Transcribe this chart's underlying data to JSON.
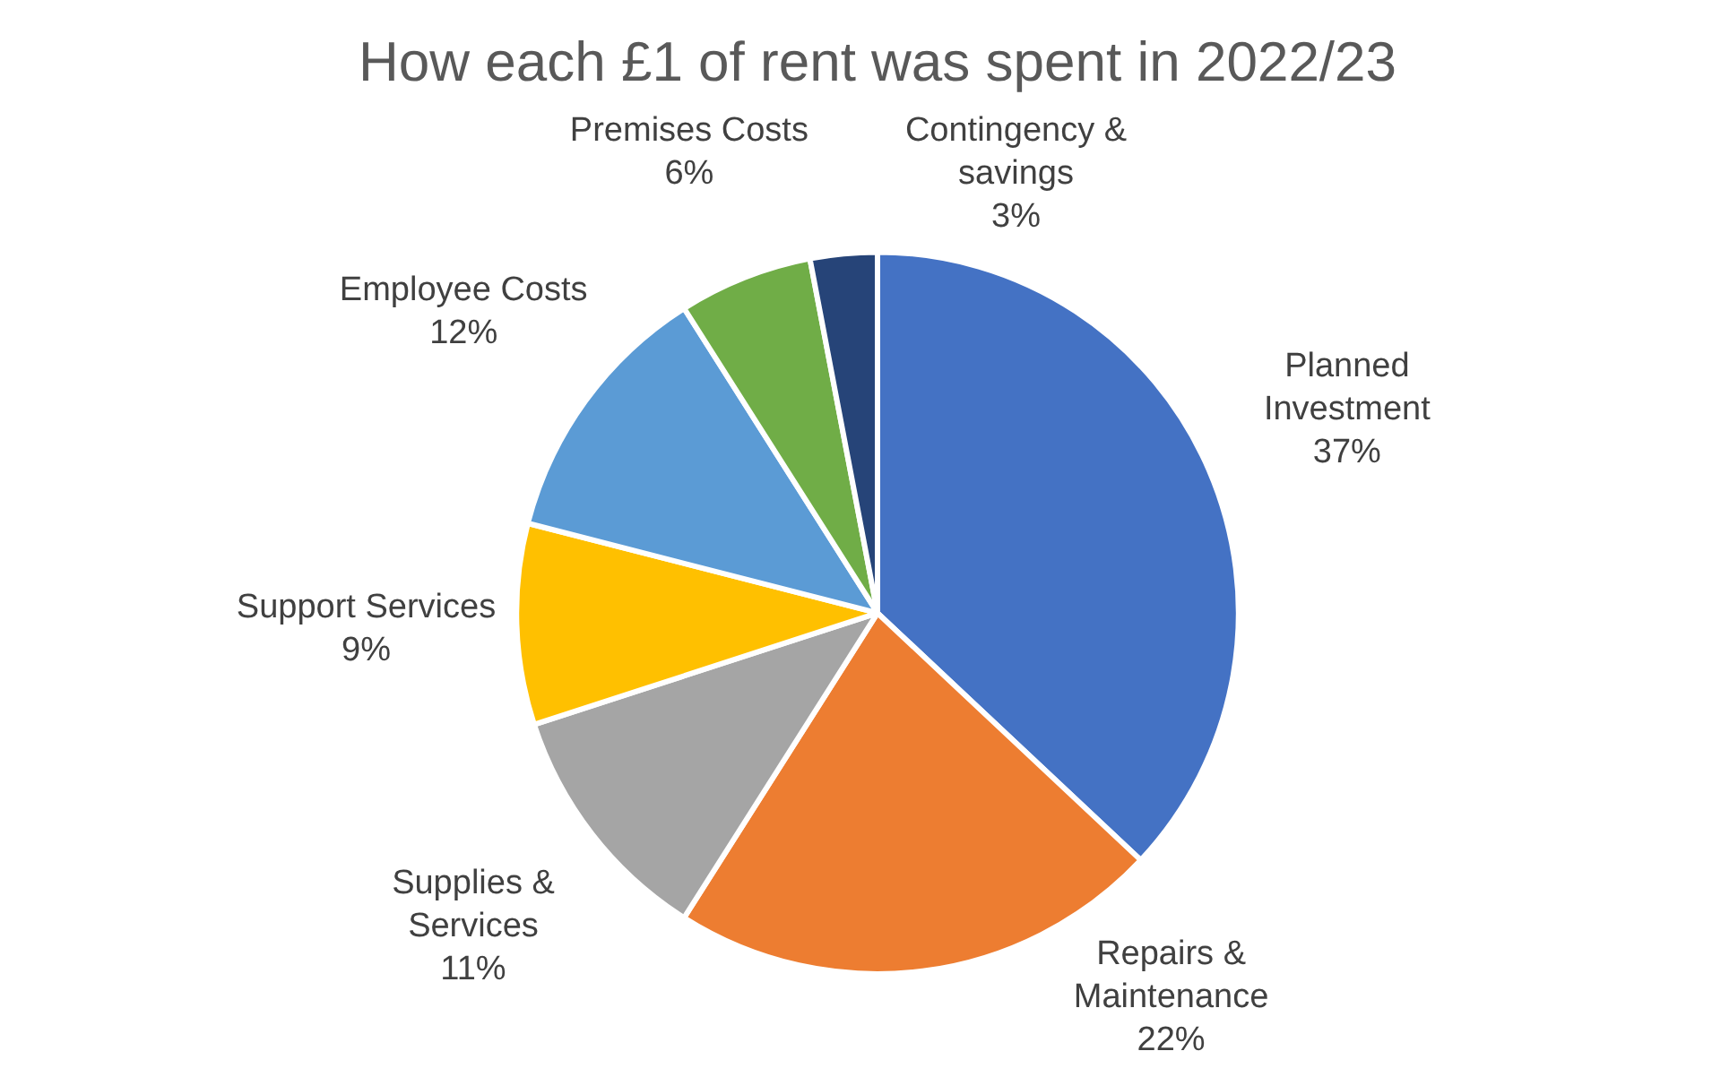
{
  "chart_data": {
    "type": "pie",
    "title": "How each £1 of rent was spent in 2022/23",
    "categories": [
      "Planned Investment",
      "Repairs & Maintenance",
      "Supplies & Services",
      "Support Services",
      "Employee Costs",
      "Premises Costs",
      "Contingency & savings"
    ],
    "values": [
      37,
      22,
      11,
      9,
      12,
      6,
      3
    ],
    "value_labels": [
      "37%",
      "22%",
      "11%",
      "9%",
      "12%",
      "6%",
      "3%"
    ],
    "colors": [
      "#4472c4",
      "#ed7d31",
      "#a5a5a5",
      "#ffc000",
      "#5b9bd5",
      "#70ad47",
      "#264478"
    ],
    "legend": false
  }
}
